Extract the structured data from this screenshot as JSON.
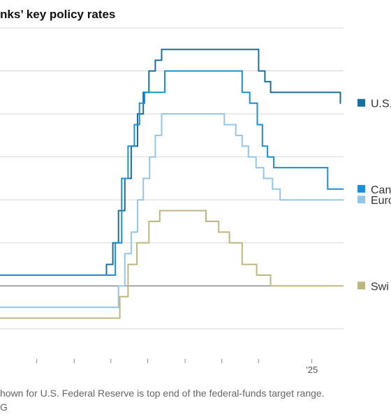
{
  "chart_data": {
    "type": "line",
    "title": "nks’ key policy rates",
    "x_tick_labels": [
      {
        "x": 2024.92,
        "label": "’25"
      }
    ],
    "y_gridlines": [
      -1,
      0,
      1,
      2,
      3,
      4,
      5,
      6
    ],
    "ylim": [
      -1.7,
      6.0
    ],
    "xlim": [
      2020.0,
      2025.42
    ],
    "grid": true,
    "legend_placement": "right",
    "series": [
      {
        "name": "U.S.",
        "color": "#1a6e9b",
        "steps": [
          [
            2020.0,
            0.25
          ],
          [
            2021.68,
            0.5
          ],
          [
            2021.78,
            1.0
          ],
          [
            2021.87,
            1.75
          ],
          [
            2021.97,
            2.5
          ],
          [
            2022.07,
            3.25
          ],
          [
            2022.17,
            4.0
          ],
          [
            2022.26,
            4.5
          ],
          [
            2022.35,
            5.0
          ],
          [
            2022.45,
            5.25
          ],
          [
            2022.55,
            5.5
          ],
          [
            2024.08,
            5.0
          ],
          [
            2024.18,
            4.75
          ],
          [
            2024.27,
            4.5
          ],
          [
            2025.37,
            4.25
          ]
        ]
      },
      {
        "name": "Can",
        "color": "#1a8fd6",
        "steps": [
          [
            2020.0,
            0.25
          ],
          [
            2021.82,
            1.0
          ],
          [
            2021.92,
            2.5
          ],
          [
            2022.02,
            3.25
          ],
          [
            2022.12,
            3.75
          ],
          [
            2022.2,
            4.25
          ],
          [
            2022.28,
            4.5
          ],
          [
            2022.6,
            5.0
          ],
          [
            2023.82,
            4.5
          ],
          [
            2023.94,
            4.25
          ],
          [
            2024.06,
            3.75
          ],
          [
            2024.14,
            3.25
          ],
          [
            2024.22,
            3.0
          ],
          [
            2024.32,
            2.75
          ],
          [
            2025.17,
            2.25
          ],
          [
            2025.42,
            2.25
          ]
        ]
      },
      {
        "name": "Euro",
        "color": "#93c6e8",
        "steps": [
          [
            2020.0,
            -0.5
          ],
          [
            2021.87,
            0.0
          ],
          [
            2021.97,
            0.75
          ],
          [
            2022.07,
            1.25
          ],
          [
            2022.17,
            2.0
          ],
          [
            2022.26,
            2.5
          ],
          [
            2022.36,
            3.0
          ],
          [
            2022.45,
            3.5
          ],
          [
            2022.55,
            4.0
          ],
          [
            2023.54,
            3.75
          ],
          [
            2023.72,
            3.5
          ],
          [
            2023.82,
            3.25
          ],
          [
            2023.92,
            3.0
          ],
          [
            2024.04,
            2.75
          ],
          [
            2024.16,
            2.5
          ],
          [
            2024.3,
            2.25
          ],
          [
            2024.42,
            2.0
          ],
          [
            2025.42,
            2.0
          ]
        ]
      },
      {
        "name": "Swi",
        "color": "#bdb67e",
        "steps": [
          [
            2020.0,
            -0.75
          ],
          [
            2021.89,
            -0.25
          ],
          [
            2022.02,
            0.5
          ],
          [
            2022.16,
            1.0
          ],
          [
            2022.35,
            1.5
          ],
          [
            2022.52,
            1.75
          ],
          [
            2023.25,
            1.5
          ],
          [
            2023.45,
            1.25
          ],
          [
            2023.62,
            1.0
          ],
          [
            2023.82,
            0.5
          ],
          [
            2024.05,
            0.25
          ],
          [
            2024.27,
            0.0
          ],
          [
            2025.42,
            0.0
          ]
        ]
      }
    ],
    "note": "hown for U.S. Federal Reserve is top end of the federal-funds target range.",
    "source": "G"
  }
}
